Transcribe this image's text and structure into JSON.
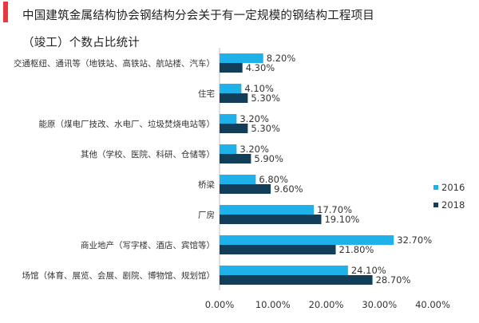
{
  "colors": {
    "accent": "#e8383d",
    "series_2016": "#1fb2ea",
    "series_2018": "#123e5a",
    "axis": "#bfbfbf"
  },
  "chart_data": {
    "type": "bar",
    "orientation": "horizontal",
    "title_line1": "中国建筑金属结构协会钢结构分会关于有一定规模的钢结构工程项目",
    "title_line2": "（竣工）个数占比统计",
    "categories": [
      "交通枢纽、通讯等（地铁站、高铁站、航站楼、汽车）",
      "住宅",
      "能原（煤电厂技改、水电厂、垃圾焚烧电站等）",
      "其他（学校、医院、科研、仓储等）",
      "桥梁",
      "厂房",
      "商业地产（写字楼、酒店、宾馆等）",
      "场馆（体育、展览、会展、剧院、博物馆、规划馆）"
    ],
    "series": [
      {
        "name": "2016",
        "values": [
          8.2,
          4.1,
          3.2,
          3.2,
          6.8,
          17.7,
          32.7,
          24.1
        ],
        "labels": [
          "8.20%",
          "4.10%",
          "3.20%",
          "3.20%",
          "6.80%",
          "17.70%",
          "32.70%",
          "24.10%"
        ]
      },
      {
        "name": "2018",
        "values": [
          4.3,
          5.3,
          5.3,
          5.9,
          9.6,
          19.1,
          21.8,
          28.7
        ],
        "labels": [
          "4.30%",
          "5.30%",
          "5.30%",
          "5.90%",
          "9.60%",
          "19.10%",
          "21.80%",
          "28.70%"
        ]
      }
    ],
    "xlim": [
      0,
      40
    ],
    "xticks": [
      "0.00%",
      "10.00%",
      "20.00%",
      "30.00%",
      "40.00%"
    ],
    "legend_position": "right",
    "grid": false
  }
}
